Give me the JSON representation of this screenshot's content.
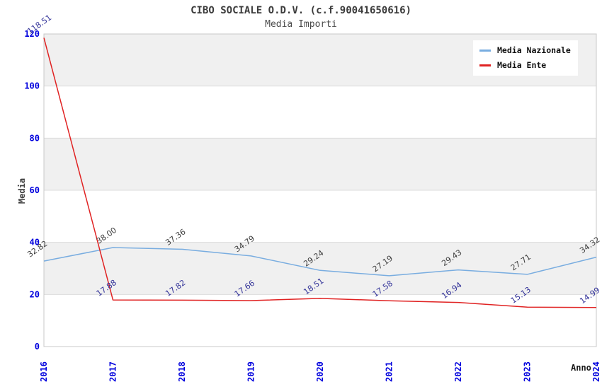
{
  "header": {
    "title": "CIBO SOCIALE O.D.V. (c.f.90041650616)",
    "subtitle": "Media Importi"
  },
  "colors": {
    "nazionale_line": "#79ade0",
    "ente_line": "#e02222",
    "tick_label_blue": "#0000dd",
    "nazionale_data_label": "#3f3f3f",
    "ente_data_label": "#333399",
    "band_gray": "#f0f0f0",
    "grid_line": "#dcdcdc",
    "plot_border": "#c8c8c8"
  },
  "chart_data": {
    "type": "line",
    "title": "CIBO SOCIALE O.D.V. (c.f.90041650616)",
    "subtitle": "Media Importi",
    "xlabel": "Anno",
    "ylabel": "Media",
    "x": [
      "2016",
      "2017",
      "2018",
      "2019",
      "2020",
      "2021",
      "2022",
      "2023",
      "2024"
    ],
    "ylim": [
      0,
      120
    ],
    "y_ticks": [
      0,
      20,
      40,
      60,
      80,
      100,
      120
    ],
    "grid": true,
    "band_ranges": [
      [
        20,
        40
      ],
      [
        60,
        80
      ],
      [
        100,
        120
      ]
    ],
    "legend_position": "top-right",
    "series": [
      {
        "name": "Media Nazionale",
        "color": "#79ade0",
        "label_color": "#3f3f3f",
        "values": [
          32.82,
          38.0,
          37.36,
          34.79,
          29.24,
          27.19,
          29.43,
          27.71,
          34.32
        ]
      },
      {
        "name": "Media Ente",
        "color": "#e02222",
        "label_color": "#333399",
        "values": [
          118.51,
          17.88,
          17.82,
          17.66,
          18.51,
          17.58,
          16.94,
          15.13,
          14.99
        ]
      }
    ]
  }
}
